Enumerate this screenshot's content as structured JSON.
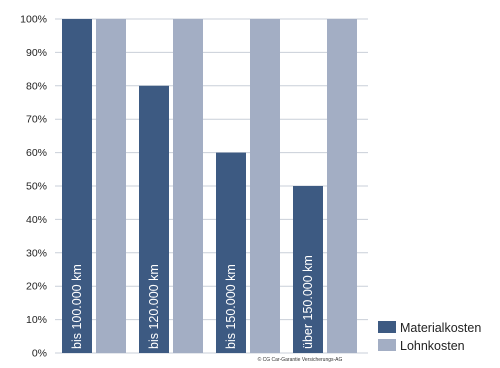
{
  "chart_data": {
    "type": "bar",
    "categories": [
      "bis 100.000 km",
      "bis 120.000 km",
      "bis 150.000 km",
      "über 150.000 km"
    ],
    "series": [
      {
        "name": "Materialkosten",
        "values": [
          100,
          80,
          60,
          50
        ],
        "color": "#3d5a82"
      },
      {
        "name": "Lohnkosten",
        "values": [
          100,
          100,
          100,
          100
        ],
        "color": "#a3aec4"
      }
    ],
    "y_tick_labels": [
      "0%",
      "10%",
      "20%",
      "30%",
      "40%",
      "50%",
      "60%",
      "70%",
      "80%",
      "90%",
      "100%"
    ],
    "ylim": [
      0,
      100
    ],
    "grid": true,
    "legend_position": "bottom-right",
    "category_label_placement": "inside-first-bar-vertical",
    "colors": {
      "grid": "#c9cfd8",
      "text": "#222222",
      "category_label": "#ffffff"
    }
  },
  "footer": {
    "copyright": "© CG Car-Garantie Versicherungs-AG"
  }
}
